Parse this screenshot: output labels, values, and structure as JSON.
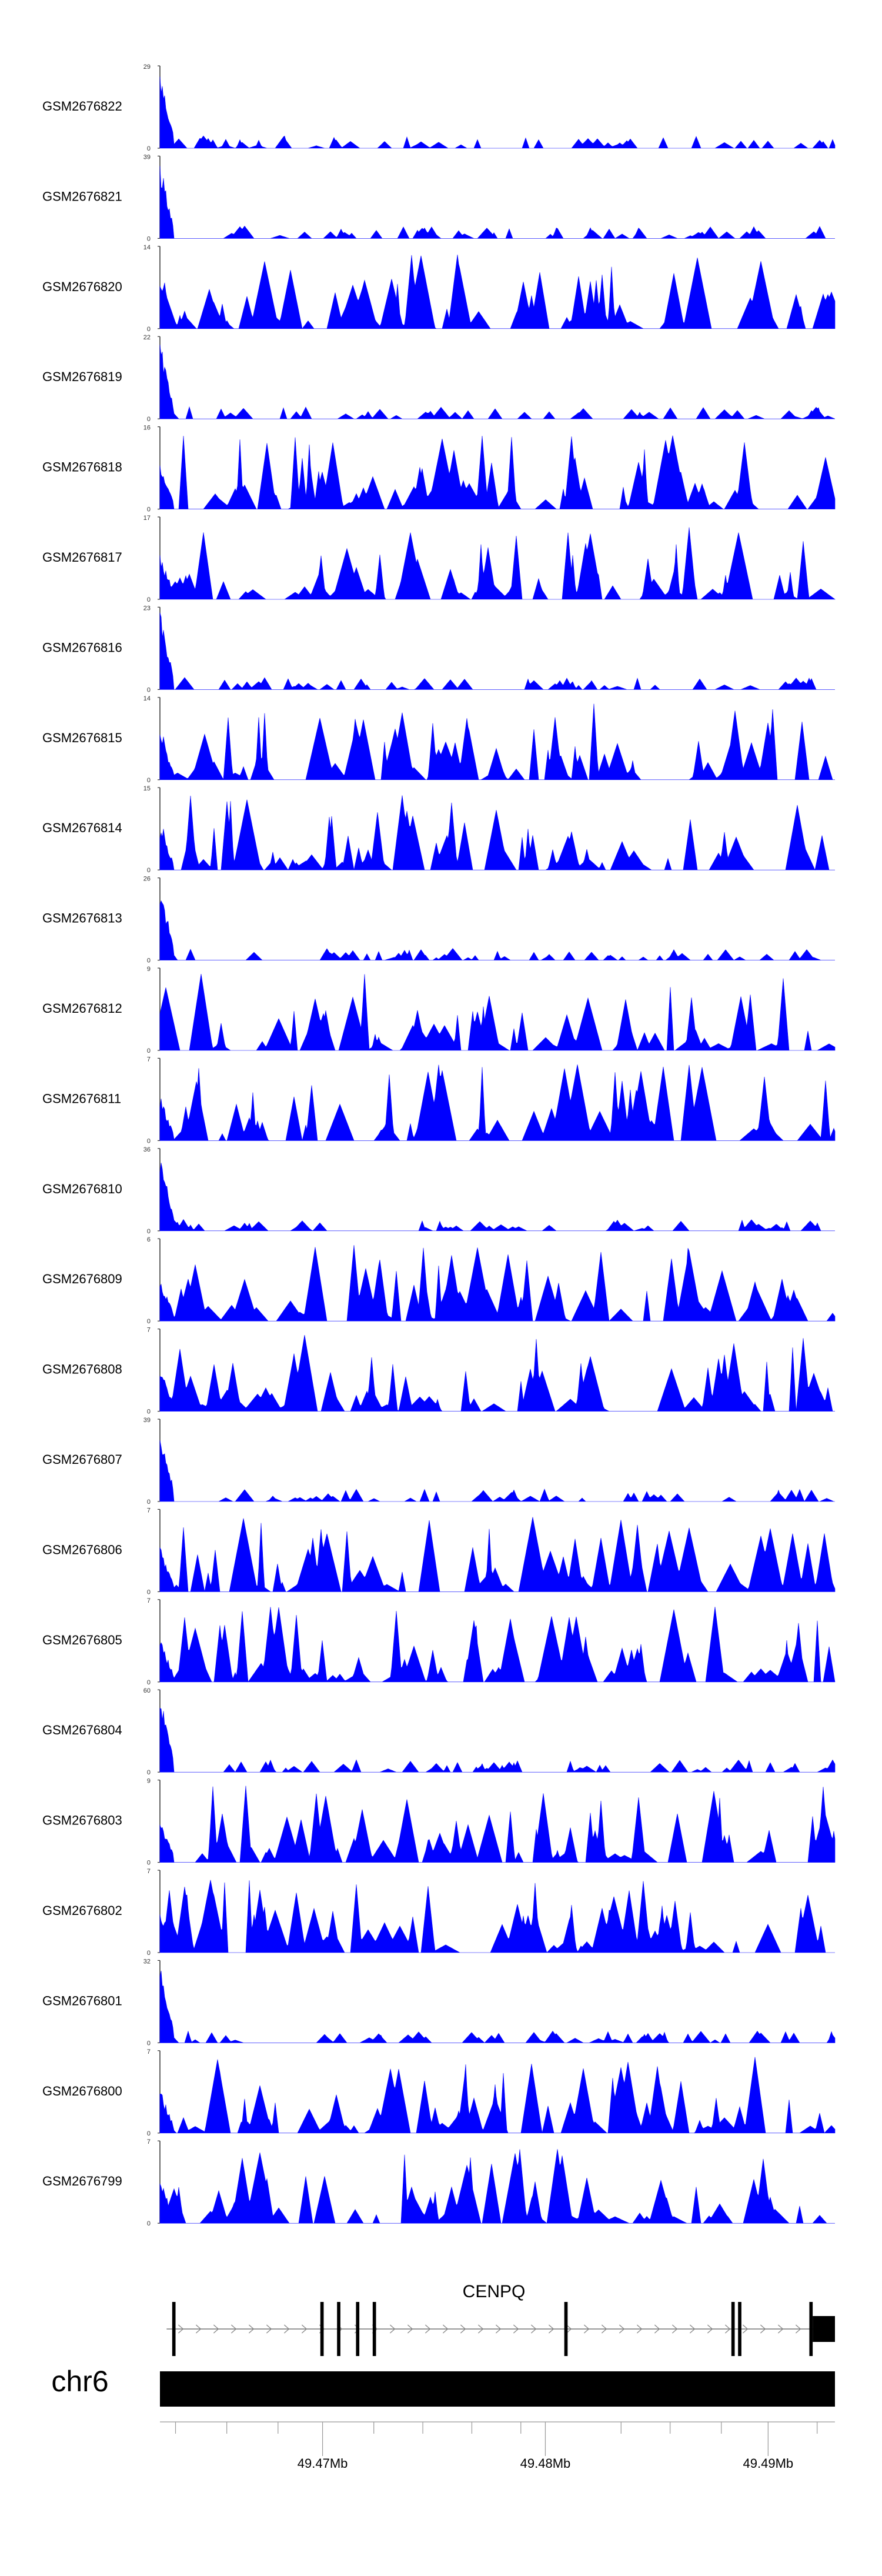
{
  "chart_data": {
    "type": "area",
    "title": "",
    "xlabel": "",
    "color": "#0000ff",
    "xlim": [
      49.4627,
      49.493
    ],
    "tracks": [
      {
        "name": "GSM2676822",
        "ymax": "29",
        "ymin": "0"
      },
      {
        "name": "GSM2676821",
        "ymax": "39",
        "ymin": "0"
      },
      {
        "name": "GSM2676820",
        "ymax": "14",
        "ymin": "0"
      },
      {
        "name": "GSM2676819",
        "ymax": "22",
        "ymin": "0"
      },
      {
        "name": "GSM2676818",
        "ymax": "16",
        "ymin": "0"
      },
      {
        "name": "GSM2676817",
        "ymax": "17",
        "ymin": "0"
      },
      {
        "name": "GSM2676816",
        "ymax": "23",
        "ymin": "0"
      },
      {
        "name": "GSM2676815",
        "ymax": "14",
        "ymin": "0"
      },
      {
        "name": "GSM2676814",
        "ymax": "15",
        "ymin": "0"
      },
      {
        "name": "GSM2676813",
        "ymax": "26",
        "ymin": "0"
      },
      {
        "name": "GSM2676812",
        "ymax": "9",
        "ymin": "0"
      },
      {
        "name": "GSM2676811",
        "ymax": "7",
        "ymin": "0"
      },
      {
        "name": "GSM2676810",
        "ymax": "36",
        "ymin": "0"
      },
      {
        "name": "GSM2676809",
        "ymax": "6",
        "ymin": "0"
      },
      {
        "name": "GSM2676808",
        "ymax": "7",
        "ymin": "0"
      },
      {
        "name": "GSM2676807",
        "ymax": "39",
        "ymin": "0"
      },
      {
        "name": "GSM2676806",
        "ymax": "7",
        "ymin": "0"
      },
      {
        "name": "GSM2676805",
        "ymax": "7",
        "ymin": "0"
      },
      {
        "name": "GSM2676804",
        "ymax": "60",
        "ymin": "0"
      },
      {
        "name": "GSM2676803",
        "ymax": "9",
        "ymin": "0"
      },
      {
        "name": "GSM2676802",
        "ymax": "7",
        "ymin": "0"
      },
      {
        "name": "GSM2676801",
        "ymax": "32",
        "ymin": "0"
      },
      {
        "name": "GSM2676800",
        "ymax": "7",
        "ymin": "0"
      },
      {
        "name": "GSM2676799",
        "ymax": "7",
        "ymin": "0"
      }
    ],
    "gene": {
      "name": "CENPQ",
      "strand": "+",
      "start": 49.463,
      "end": 49.493,
      "exons": [
        {
          "start": 49.46325,
          "end": 49.4634
        },
        {
          "start": 49.4699,
          "end": 49.47005
        },
        {
          "start": 49.47065,
          "end": 49.4708
        },
        {
          "start": 49.4715,
          "end": 49.47165
        },
        {
          "start": 49.47225,
          "end": 49.4724
        },
        {
          "start": 49.48085,
          "end": 49.481
        },
        {
          "start": 49.48835,
          "end": 49.4885
        },
        {
          "start": 49.48865,
          "end": 49.4888
        },
        {
          "start": 49.49185,
          "end": 49.492
        },
        {
          "start": 49.492,
          "end": 49.493
        }
      ]
    },
    "chromosome": {
      "name": "chr6",
      "major_ticks": [
        49.47,
        49.48,
        49.49
      ],
      "major_labels": [
        "49.47Mb",
        "49.48Mb",
        "49.49Mb"
      ],
      "minor_ticks": [
        49.4634,
        49.4657,
        49.468,
        49.4723,
        49.4745,
        49.4767,
        49.4789,
        49.4834,
        49.4856,
        49.4879,
        49.4922
      ]
    }
  }
}
